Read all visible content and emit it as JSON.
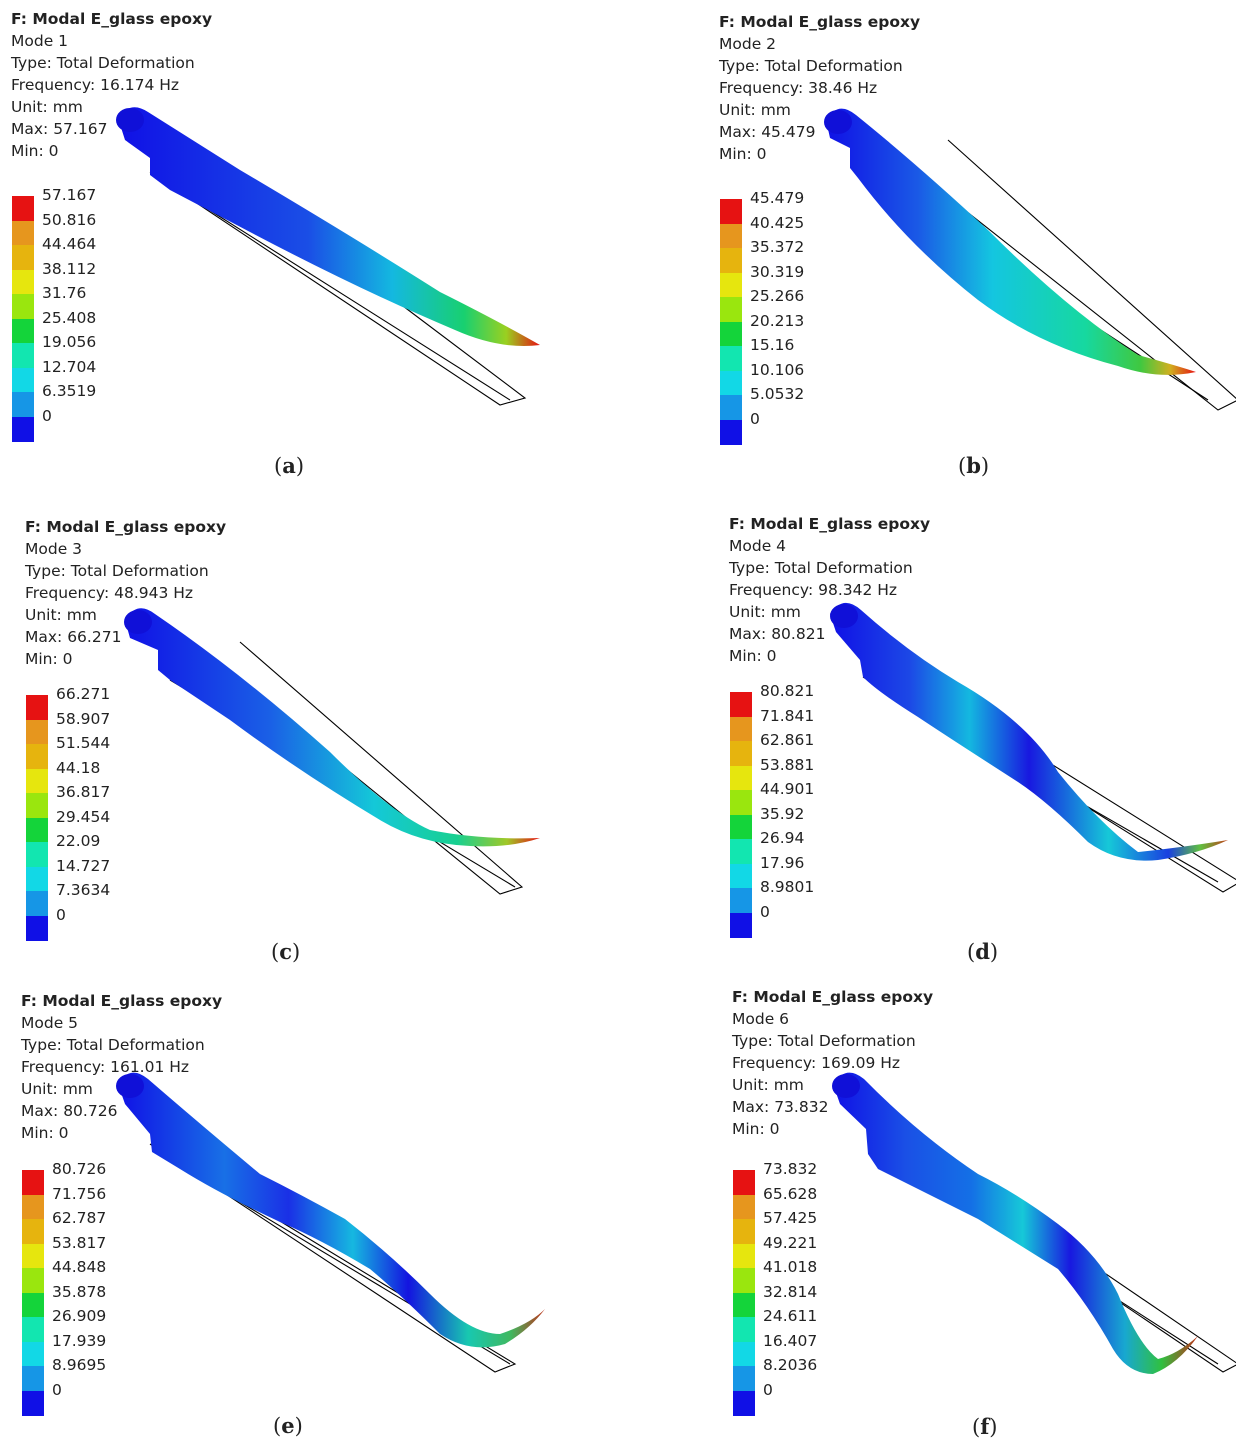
{
  "colormap": [
    "#1010e6",
    "#1696e6",
    "#12d8e6",
    "#12e6b0",
    "#14d43a",
    "#9ae60e",
    "#e6e60e",
    "#e6b40e",
    "#e6961e",
    "#e61212"
  ],
  "panels": [
    {
      "caption": "a",
      "title": "F: Modal E_glass epoxy",
      "mode": "Mode 1",
      "type": "Type: Total Deformation",
      "frequency": "Frequency: 16.174 Hz",
      "unit": "Unit: mm",
      "max": "Max: 57.167",
      "min": "Min: 0",
      "legend": [
        "57.167",
        "50.816",
        "44.464",
        "38.112",
        "31.76",
        "25.408",
        "19.056",
        "12.704",
        "6.3519",
        "0"
      ]
    },
    {
      "caption": "b",
      "title": "F: Modal E_glass epoxy",
      "mode": "Mode 2",
      "type": "Type: Total Deformation",
      "frequency": "Frequency: 38.46 Hz",
      "unit": "Unit: mm",
      "max": "Max: 45.479",
      "min": "Min: 0",
      "legend": [
        "45.479",
        "40.425",
        "35.372",
        "30.319",
        "25.266",
        "20.213",
        "15.16",
        "10.106",
        "5.0532",
        "0"
      ]
    },
    {
      "caption": "c",
      "title": "F: Modal E_glass epoxy",
      "mode": "Mode 3",
      "type": "Type: Total Deformation",
      "frequency": "Frequency: 48.943 Hz",
      "unit": "Unit: mm",
      "max": "Max: 66.271",
      "min": "Min: 0",
      "legend": [
        "66.271",
        "58.907",
        "51.544",
        "44.18",
        "36.817",
        "29.454",
        "22.09",
        "14.727",
        "7.3634",
        "0"
      ]
    },
    {
      "caption": "d",
      "title": "F: Modal E_glass epoxy",
      "mode": "Mode 4",
      "type": "Type: Total Deformation",
      "frequency": "Frequency: 98.342 Hz",
      "unit": "Unit: mm",
      "max": "Max: 80.821",
      "min": "Min: 0",
      "legend": [
        "80.821",
        "71.841",
        "62.861",
        "53.881",
        "44.901",
        "35.92",
        "26.94",
        "17.96",
        "8.9801",
        "0"
      ]
    },
    {
      "caption": "e",
      "title": "F: Modal E_glass epoxy",
      "mode": "Mode 5",
      "type": "Type: Total Deformation",
      "frequency": "Frequency: 161.01 Hz",
      "unit": "Unit: mm",
      "max": "Max: 80.726",
      "min": "Min: 0",
      "legend": [
        "80.726",
        "71.756",
        "62.787",
        "53.817",
        "44.848",
        "35.878",
        "26.909",
        "17.939",
        "8.9695",
        "0"
      ]
    },
    {
      "caption": "f",
      "title": "F: Modal E_glass epoxy",
      "mode": "Mode 6",
      "type": "Type: Total Deformation",
      "frequency": "Frequency: 169.09 Hz",
      "unit": "Unit: mm",
      "max": "Max: 73.832",
      "min": "Min: 0",
      "legend": [
        "73.832",
        "65.628",
        "57.425",
        "49.221",
        "41.018",
        "32.814",
        "24.611",
        "16.407",
        "8.2036",
        "0"
      ]
    }
  ]
}
